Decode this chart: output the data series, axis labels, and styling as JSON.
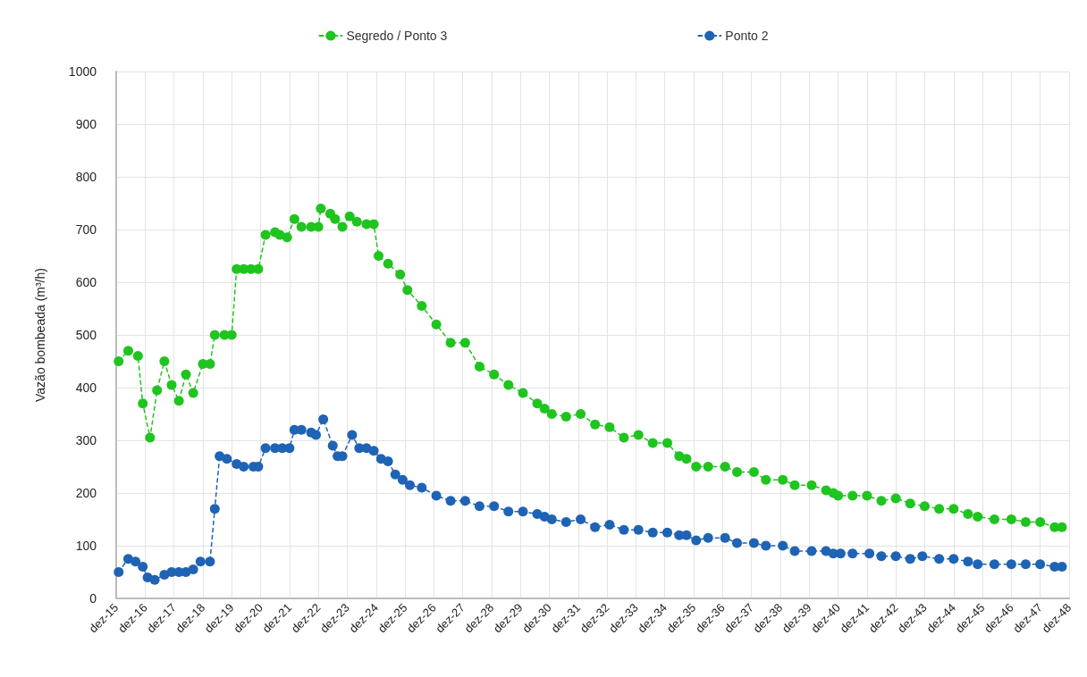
{
  "chart_data": {
    "type": "line",
    "ylabel": "Vazão bombeada (m³/h)",
    "xlim": [
      "2015-12",
      "2048-12"
    ],
    "xticks": [
      {
        "value": "2015-12",
        "label": "dez-15"
      },
      {
        "value": "2016-12",
        "label": "dez-16"
      },
      {
        "value": "2017-12",
        "label": "dez-17"
      },
      {
        "value": "2018-12",
        "label": "dez-18"
      },
      {
        "value": "2019-12",
        "label": "dez-19"
      },
      {
        "value": "2020-12",
        "label": "dez-20"
      },
      {
        "value": "2021-12",
        "label": "dez-21"
      },
      {
        "value": "2022-12",
        "label": "dez-22"
      },
      {
        "value": "2023-12",
        "label": "dez-23"
      },
      {
        "value": "2024-12",
        "label": "dez-24"
      },
      {
        "value": "2025-12",
        "label": "dez-25"
      },
      {
        "value": "2026-12",
        "label": "dez-26"
      },
      {
        "value": "2027-12",
        "label": "dez-27"
      },
      {
        "value": "2028-12",
        "label": "dez-28"
      },
      {
        "value": "2029-12",
        "label": "dez-29"
      },
      {
        "value": "2030-12",
        "label": "dez-30"
      },
      {
        "value": "2031-12",
        "label": "dez-31"
      },
      {
        "value": "2032-12",
        "label": "dez-32"
      },
      {
        "value": "2033-12",
        "label": "dez-33"
      },
      {
        "value": "2034-12",
        "label": "dez-34"
      },
      {
        "value": "2035-12",
        "label": "dez-35"
      },
      {
        "value": "2036-12",
        "label": "dez-36"
      },
      {
        "value": "2037-12",
        "label": "dez-37"
      },
      {
        "value": "2038-12",
        "label": "dez-38"
      },
      {
        "value": "2039-12",
        "label": "dez-39"
      },
      {
        "value": "2040-12",
        "label": "dez-40"
      },
      {
        "value": "2041-12",
        "label": "dez-41"
      },
      {
        "value": "2042-12",
        "label": "dez-42"
      },
      {
        "value": "2043-12",
        "label": "dez-43"
      },
      {
        "value": "2044-12",
        "label": "dez-44"
      },
      {
        "value": "2045-12",
        "label": "dez-45"
      },
      {
        "value": "2046-12",
        "label": "dez-46"
      },
      {
        "value": "2047-12",
        "label": "dez-47"
      },
      {
        "value": "2048-12",
        "label": "dez-48"
      }
    ],
    "ylim": [
      0,
      1000
    ],
    "yticks": [
      0,
      100,
      200,
      300,
      400,
      500,
      600,
      700,
      800,
      900,
      1000
    ],
    "grid": true,
    "legend": "top",
    "marker": "circle",
    "line_style": "dashed",
    "series": [
      {
        "name": "Segredo / Ponto 3",
        "color": "#1fc41f",
        "x": [
          "2016-01",
          "2016-05",
          "2016-09",
          "2016-11",
          "2017-02",
          "2017-05",
          "2017-08",
          "2017-11",
          "2018-02",
          "2018-05",
          "2018-08",
          "2018-12",
          "2019-03",
          "2019-05",
          "2019-09",
          "2019-12",
          "2020-02",
          "2020-05",
          "2020-08",
          "2020-11",
          "2021-02",
          "2021-06",
          "2021-08",
          "2021-11",
          "2022-02",
          "2022-05",
          "2022-09",
          "2022-12",
          "2023-01",
          "2023-05",
          "2023-07",
          "2023-10",
          "2024-01",
          "2024-04",
          "2024-08",
          "2024-11",
          "2025-01",
          "2025-05",
          "2025-10",
          "2026-01",
          "2026-07",
          "2027-01",
          "2027-07",
          "2028-01",
          "2028-07",
          "2029-01",
          "2029-07",
          "2030-01",
          "2030-07",
          "2030-10",
          "2031-01",
          "2031-07",
          "2032-01",
          "2032-07",
          "2033-01",
          "2033-07",
          "2034-01",
          "2034-07",
          "2035-01",
          "2035-06",
          "2035-09",
          "2036-01",
          "2036-06",
          "2037-01",
          "2037-06",
          "2038-01",
          "2038-06",
          "2039-01",
          "2039-06",
          "2040-01",
          "2040-07",
          "2040-10",
          "2040-12",
          "2041-06",
          "2041-12",
          "2042-06",
          "2042-12",
          "2043-06",
          "2043-12",
          "2044-06",
          "2044-12",
          "2045-06",
          "2045-10",
          "2046-05",
          "2046-12",
          "2047-06",
          "2047-12",
          "2048-06",
          "2048-09"
        ],
        "values": [
          450,
          470,
          460,
          370,
          305,
          395,
          450,
          405,
          375,
          425,
          390,
          445,
          445,
          500,
          500,
          500,
          625,
          625,
          625,
          625,
          690,
          695,
          690,
          685,
          720,
          705,
          705,
          705,
          740,
          730,
          720,
          705,
          725,
          715,
          710,
          710,
          650,
          635,
          615,
          585,
          555,
          520,
          485,
          485,
          440,
          425,
          405,
          390,
          370,
          360,
          350,
          345,
          350,
          330,
          325,
          305,
          310,
          295,
          295,
          270,
          265,
          250,
          250,
          250,
          240,
          240,
          225,
          225,
          215,
          215,
          205,
          200,
          195,
          195,
          195,
          185,
          190,
          180,
          175,
          170,
          170,
          160,
          155,
          150,
          150,
          145,
          145,
          135,
          135
        ]
      },
      {
        "name": "Ponto 2",
        "color": "#1f63b4",
        "x": [
          "2016-01",
          "2016-05",
          "2016-08",
          "2016-11",
          "2017-01",
          "2017-04",
          "2017-08",
          "2017-11",
          "2018-02",
          "2018-05",
          "2018-08",
          "2018-11",
          "2019-03",
          "2019-05",
          "2019-07",
          "2019-10",
          "2020-02",
          "2020-05",
          "2020-09",
          "2020-11",
          "2021-02",
          "2021-06",
          "2021-09",
          "2021-12",
          "2022-02",
          "2022-05",
          "2022-09",
          "2022-11",
          "2023-02",
          "2023-06",
          "2023-08",
          "2023-10",
          "2024-02",
          "2024-05",
          "2024-08",
          "2024-11",
          "2025-02",
          "2025-05",
          "2025-08",
          "2025-11",
          "2026-02",
          "2026-07",
          "2027-01",
          "2027-07",
          "2028-01",
          "2028-07",
          "2029-01",
          "2029-07",
          "2030-01",
          "2030-07",
          "2030-10",
          "2031-01",
          "2031-07",
          "2032-01",
          "2032-07",
          "2033-01",
          "2033-07",
          "2034-01",
          "2034-07",
          "2035-01",
          "2035-06",
          "2035-09",
          "2036-01",
          "2036-06",
          "2037-01",
          "2037-06",
          "2038-01",
          "2038-06",
          "2039-01",
          "2039-06",
          "2040-01",
          "2040-07",
          "2040-10",
          "2041-01",
          "2041-06",
          "2042-01",
          "2042-06",
          "2042-12",
          "2043-06",
          "2043-11",
          "2044-06",
          "2044-12",
          "2045-06",
          "2045-10",
          "2046-05",
          "2046-12",
          "2047-06",
          "2047-12",
          "2048-06",
          "2048-09"
        ],
        "values": [
          50,
          75,
          70,
          60,
          40,
          35,
          45,
          50,
          50,
          50,
          55,
          70,
          70,
          170,
          270,
          265,
          255,
          250,
          250,
          250,
          285,
          285,
          285,
          285,
          320,
          320,
          315,
          310,
          340,
          290,
          270,
          270,
          310,
          285,
          285,
          280,
          265,
          260,
          235,
          225,
          215,
          210,
          195,
          185,
          185,
          175,
          175,
          165,
          165,
          160,
          155,
          150,
          145,
          150,
          135,
          140,
          130,
          130,
          125,
          125,
          120,
          120,
          110,
          115,
          115,
          105,
          105,
          100,
          100,
          90,
          90,
          90,
          85,
          85,
          85,
          85,
          80,
          80,
          75,
          80,
          75,
          75,
          70,
          65,
          65,
          65,
          65,
          65,
          60,
          60
        ]
      }
    ]
  }
}
